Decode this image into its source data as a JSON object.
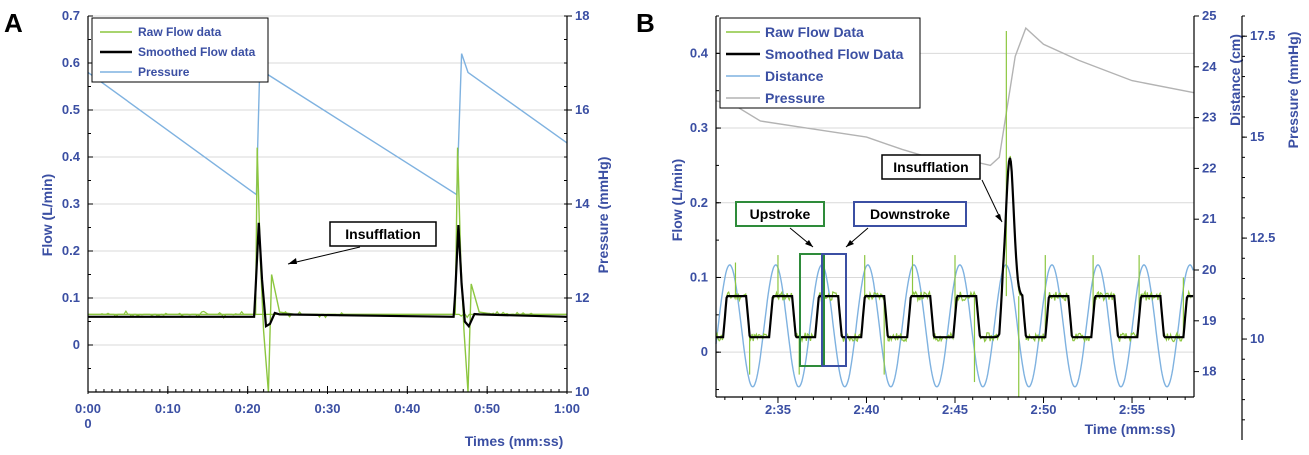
{
  "chart_data": [
    {
      "panel": "A",
      "type": "line",
      "xlabel": "Times (mm:ss)",
      "ylabel": "Flow (L/min)",
      "ylabel_right": "Pressure (mmHg)",
      "x_ticks": [
        "0:00",
        "0:10",
        "0:20",
        "0:30",
        "0:40",
        "0:50",
        "1:00"
      ],
      "x_tick_extra": "0",
      "x_range_seconds": [
        0,
        60
      ],
      "y_range": [
        -0.1,
        0.7
      ],
      "y_ticks": [
        "0",
        "0.1",
        "0.2",
        "0.3",
        "0.4",
        "0.5",
        "0.6",
        "0.7"
      ],
      "y_right_range": [
        10,
        18
      ],
      "y_right_ticks": [
        "10",
        "12",
        "14",
        "16",
        "18"
      ],
      "legend": [
        "Raw Flow data",
        "Smoothed Flow data",
        "Pressure"
      ],
      "legend_position": "top-left",
      "annotations": [
        "Insufflation"
      ],
      "series": [
        {
          "name": "Raw Flow data",
          "color": "#8cc63f",
          "x_seconds": [
            0,
            21,
            21.2,
            21.6,
            22,
            22.6,
            23,
            24,
            26,
            30,
            32,
            46,
            46.3,
            46.7,
            47.1,
            47.6,
            48,
            49,
            51,
            55,
            60
          ],
          "values": [
            0.065,
            0.065,
            0.42,
            0.18,
            0.03,
            -0.1,
            0.15,
            0.07,
            0.065,
            0.065,
            0.065,
            0.065,
            0.42,
            0.18,
            0.03,
            -0.1,
            0.13,
            0.07,
            0.065,
            0.065,
            0.065
          ]
        },
        {
          "name": "Smoothed Flow data",
          "color": "#000000",
          "x_seconds": [
            0,
            20.8,
            21.4,
            22.0,
            22.6,
            23.2,
            24,
            60
          ],
          "values": [
            0.06,
            0.06,
            0.26,
            0.06,
            0.04,
            0.068,
            0.065,
            0.06
          ],
          "second_peak_x_seconds": [
            45.8,
            46.4,
            47.0,
            47.5,
            48.2,
            49,
            60
          ],
          "second_peak_values": [
            0.06,
            0.255,
            0.06,
            0.04,
            0.066,
            0.065,
            0.06
          ]
        },
        {
          "name": "Pressure",
          "color": "#7fb2e0",
          "x_seconds": [
            0,
            21.1,
            21.6,
            22.1,
            46.2,
            46.8,
            47.6,
            60
          ],
          "values_mmHg": [
            16.8,
            14.2,
            17.4,
            16.8,
            14.2,
            17.2,
            16.8,
            15.3
          ]
        }
      ]
    },
    {
      "panel": "B",
      "type": "line",
      "xlabel": "Time (mm:ss)",
      "ylabel": "Flow (L/min)",
      "ylabel_right": "Distance (cm)",
      "ylabel_right2": "Pressure (mmHg)",
      "x_ticks": [
        "2:35",
        "2:40",
        "2:45",
        "2:50",
        "2:55"
      ],
      "x_range_seconds": [
        151.5,
        178.5
      ],
      "y_range": [
        -0.06,
        0.45
      ],
      "y_ticks": [
        "0",
        "0.1",
        "0.2",
        "0.3",
        "0.4"
      ],
      "y_right_range": [
        17.5,
        25
      ],
      "y_right_ticks": [
        "18",
        "19",
        "20",
        "21",
        "22",
        "23",
        "24",
        "25"
      ],
      "y_right2_range": [
        7.5,
        18
      ],
      "y_right2_ticks": [
        "10",
        "12.5",
        "15",
        "17.5"
      ],
      "legend": [
        "Raw Flow Data",
        "Smoothed Flow Data",
        "Distance",
        "Pressure"
      ],
      "legend_position": "top-left",
      "annotations": [
        "Insufflation",
        "Upstroke",
        "Downstroke"
      ],
      "series": [
        {
          "name": "Raw Flow Data",
          "color": "#8cc63f",
          "description_period_s": 2.6,
          "levels": [
            0.02,
            0.08
          ],
          "spike_x_seconds": 168.1,
          "spike_value": 0.43
        },
        {
          "name": "Smoothed Flow Data",
          "color": "#000000",
          "levels": [
            0.02,
            0.075
          ],
          "peak_x_seconds": 168.1,
          "peak_value": 0.26
        },
        {
          "name": "Distance",
          "color": "#7fb2e0",
          "min_cm": 17.7,
          "max_cm": 20.1,
          "period_s": 2.6
        },
        {
          "name": "Pressure",
          "color": "#b3b3b3",
          "x_seconds": [
            151.5,
            152.5,
            154,
            157,
            160,
            162,
            163.5,
            165,
            167,
            167.5,
            168.4,
            169,
            170,
            172,
            175,
            178.5
          ],
          "values_mmHg": [
            15.9,
            15.8,
            15.4,
            15.2,
            15.0,
            14.7,
            14.5,
            14.5,
            14.3,
            14.5,
            17.0,
            17.7,
            17.3,
            16.9,
            16.4,
            16.1
          ]
        }
      ]
    }
  ],
  "panel_letters": {
    "a": "A",
    "b": "B"
  }
}
